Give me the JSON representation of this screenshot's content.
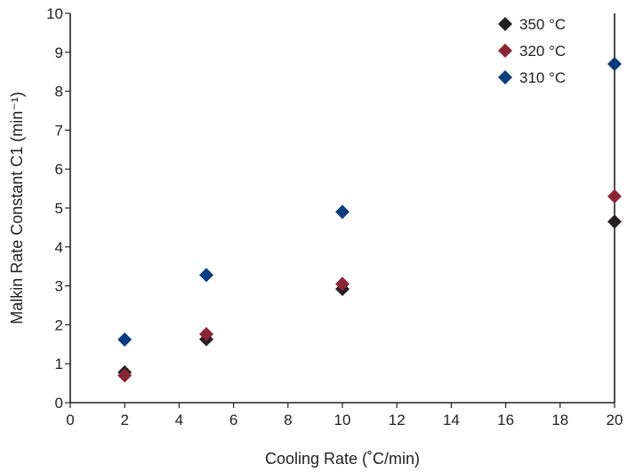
{
  "chart_data": {
    "type": "scatter",
    "title": "",
    "xlabel": "Cooling Rate (˚C/min)",
    "ylabel": "Malkin Rate Constant C1 (min⁻¹)",
    "xlim": [
      0,
      20
    ],
    "ylim": [
      0,
      10
    ],
    "x_ticks": [
      0,
      2,
      4,
      6,
      8,
      10,
      12,
      14,
      16,
      18,
      20
    ],
    "y_ticks": [
      0,
      1,
      2,
      3,
      4,
      5,
      6,
      7,
      8,
      9,
      10
    ],
    "grid": false,
    "legend_position": "top-right",
    "marker": "diamond",
    "series": [
      {
        "name": "350 °C",
        "color": "#231f20",
        "x": [
          2,
          5,
          10,
          20
        ],
        "y": [
          0.78,
          1.63,
          2.92,
          4.65
        ]
      },
      {
        "name": "320 °C",
        "color": "#8b2535",
        "x": [
          2,
          5,
          10,
          20
        ],
        "y": [
          0.7,
          1.76,
          3.05,
          5.3
        ]
      },
      {
        "name": "310 °C",
        "color": "#0b3d7e",
        "x": [
          2,
          5,
          10,
          20
        ],
        "y": [
          1.62,
          3.28,
          4.9,
          8.7
        ]
      }
    ]
  }
}
